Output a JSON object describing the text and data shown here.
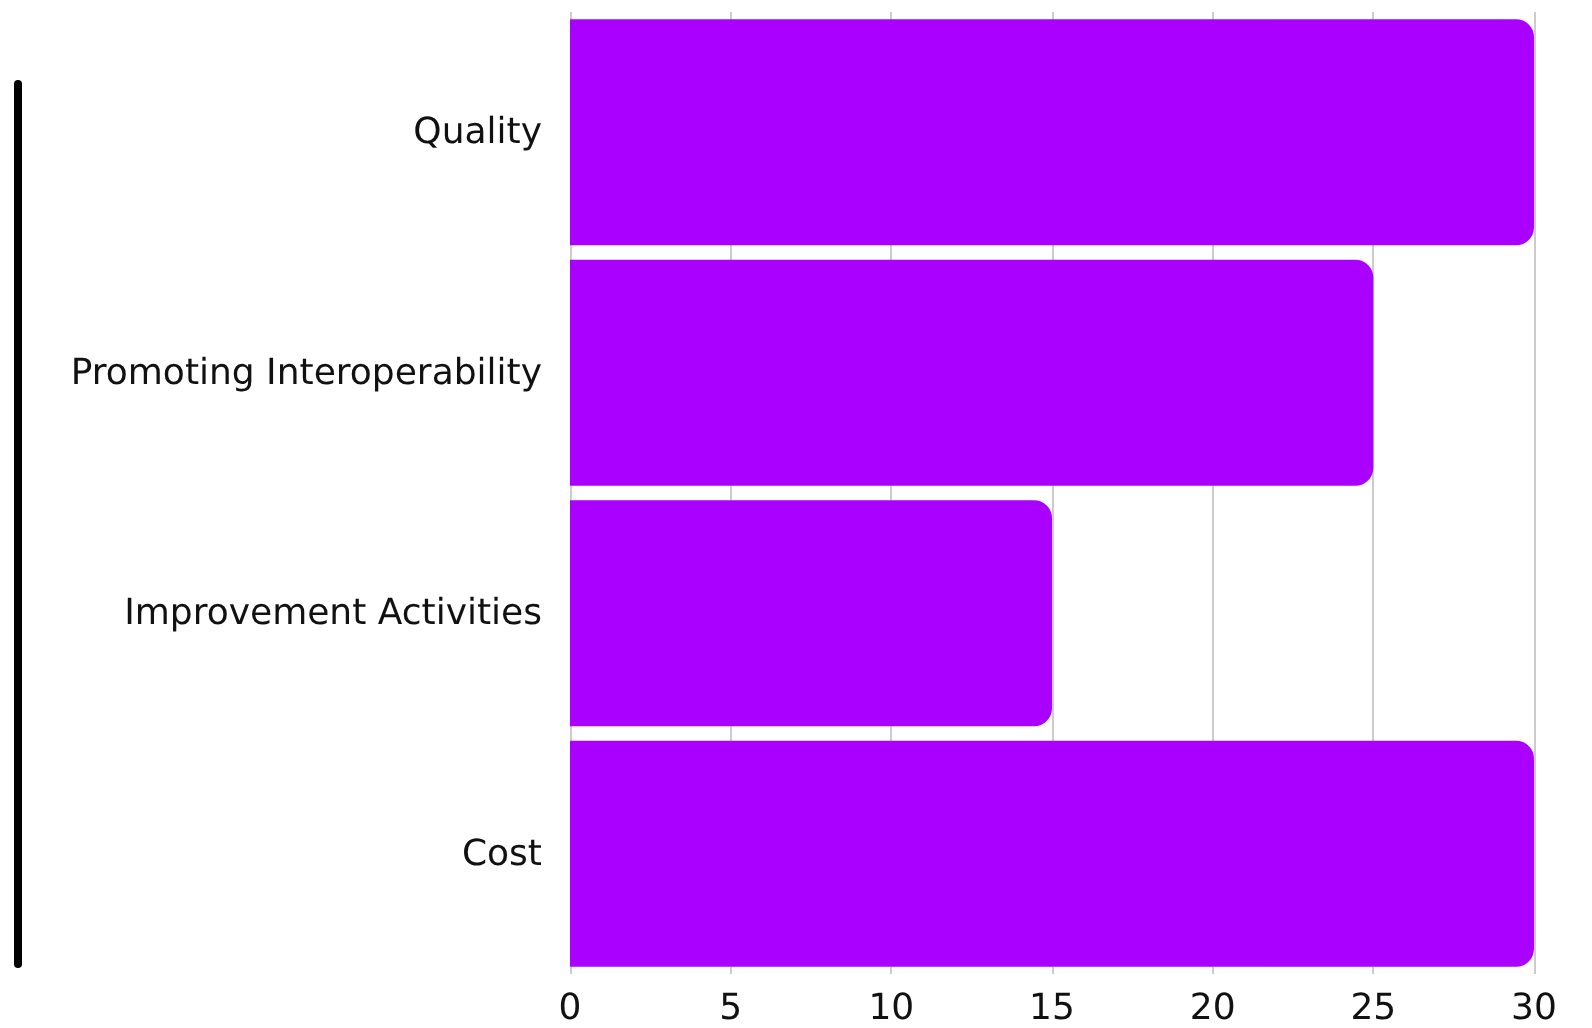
{
  "chart_data": {
    "type": "bar",
    "orientation": "horizontal",
    "categories": [
      "Quality",
      "Promoting Interoperability",
      "Improvement Activities",
      "Cost"
    ],
    "values": [
      30,
      25,
      15,
      30
    ],
    "color": "#aa00ff",
    "xlim": [
      0,
      30
    ],
    "xticks": [
      0,
      5,
      10,
      15,
      20,
      25,
      30
    ],
    "grid": "x"
  }
}
